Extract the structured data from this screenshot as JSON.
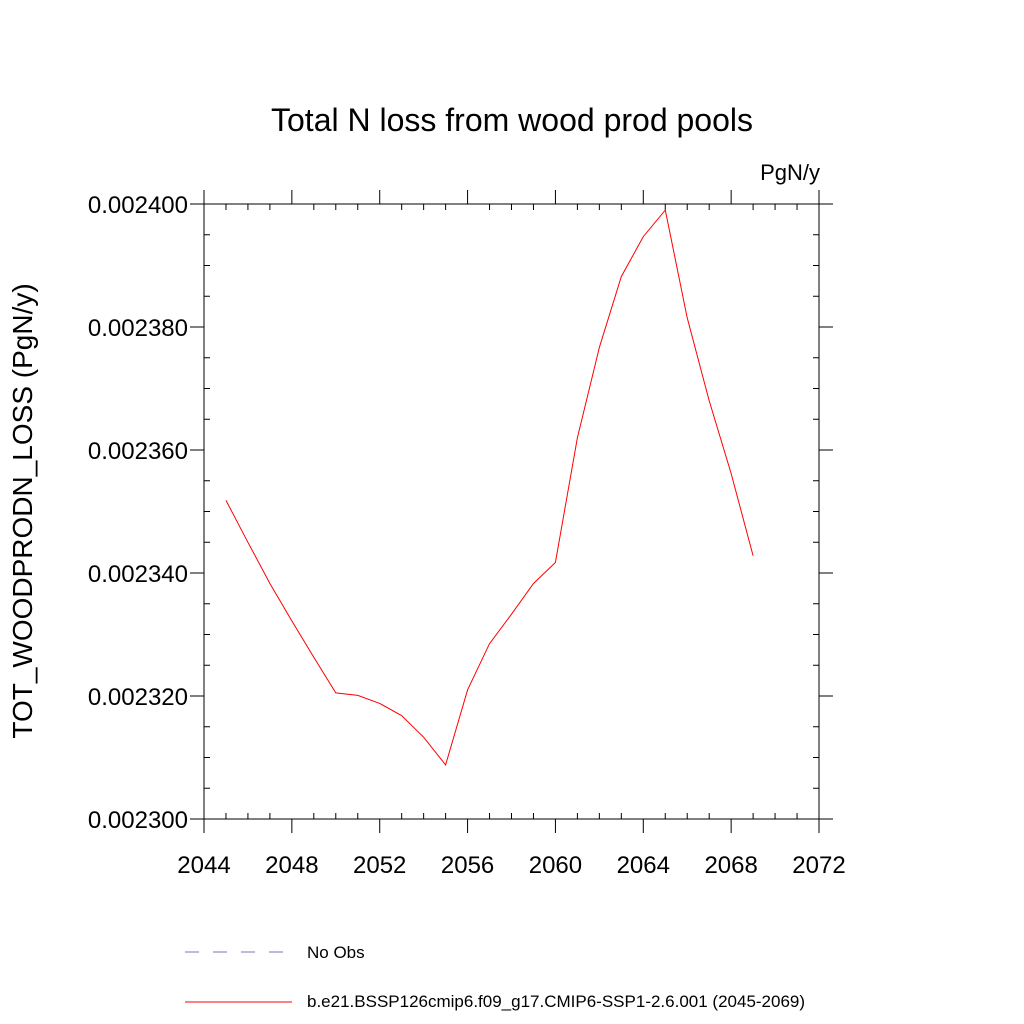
{
  "chart_data": {
    "type": "line",
    "title": "Total N loss from wood prod pools",
    "units": "PgN/y",
    "ylabel": "TOT_WOODPRODN_LOSS  (PgN/y)",
    "xlabel": "",
    "xlim": [
      2044,
      2072
    ],
    "ylim": [
      0.0023,
      0.0024
    ],
    "x_ticks": [
      "2044",
      "2048",
      "2052",
      "2056",
      "2060",
      "2064",
      "2068",
      "2072"
    ],
    "y_ticks": [
      "0.002300",
      "0.002320",
      "0.002340",
      "0.002360",
      "0.002380",
      "0.002400"
    ],
    "legend_position": "bottom",
    "series": [
      {
        "name": "b.e21.BSSP126cmip6.f09_g17.CMIP6-SSP1-2.6.001 (2045-2069)",
        "color": "#ff0000",
        "style": "solid",
        "x": [
          2045,
          2046,
          2047,
          2048,
          2049,
          2050,
          2051,
          2052,
          2053,
          2054,
          2055,
          2056,
          2057,
          2058,
          2059,
          2060,
          2061,
          2062,
          2063,
          2064,
          2065,
          2066,
          2067,
          2068,
          2069
        ],
        "y": [
          0.0023518,
          0.002345,
          0.0023383,
          0.0023322,
          0.0023263,
          0.0023205,
          0.0023201,
          0.0023188,
          0.0023168,
          0.0023133,
          0.0023088,
          0.002321,
          0.0023285,
          0.0023333,
          0.0023383,
          0.0023417,
          0.002362,
          0.0023767,
          0.0023882,
          0.0023947,
          0.002399,
          0.0023815,
          0.002368,
          0.0023562,
          0.0023428
        ]
      }
    ],
    "legend": [
      {
        "label": "No Obs",
        "color": "#7777bb",
        "style": "dashed"
      },
      {
        "label": "b.e21.BSSP126cmip6.f09_g17.CMIP6-SSP1-2.6.001 (2045-2069)",
        "color": "#ff0000",
        "style": "solid"
      }
    ]
  }
}
